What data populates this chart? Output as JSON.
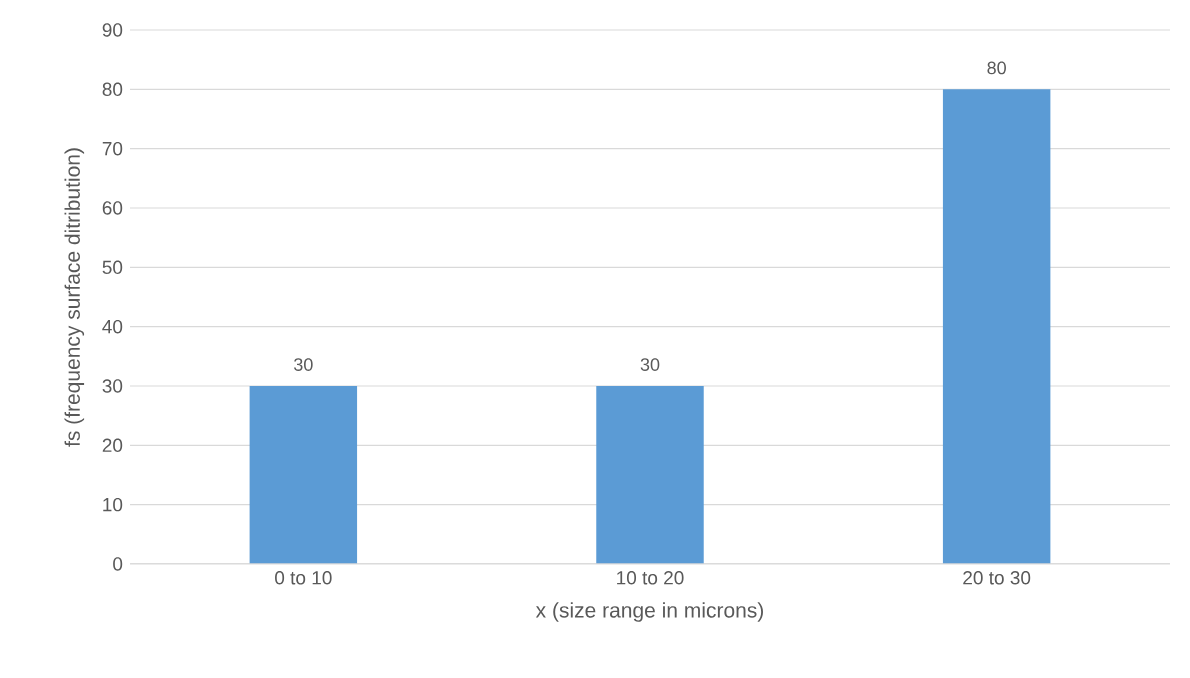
{
  "chart_data": {
    "type": "bar",
    "xlabel": "x (size range in microns)",
    "ylabel": "fs (frequency surface ditribution)",
    "categories": [
      "0 to 10",
      "10 to 20",
      "20 to 30"
    ],
    "values": [
      30,
      30,
      80
    ],
    "color": "#5b9bd5",
    "ylim": [
      0,
      90
    ],
    "yticks": [
      0,
      10,
      20,
      30,
      40,
      50,
      60,
      70,
      80,
      90
    ],
    "grid": "y",
    "data_labels": true
  }
}
